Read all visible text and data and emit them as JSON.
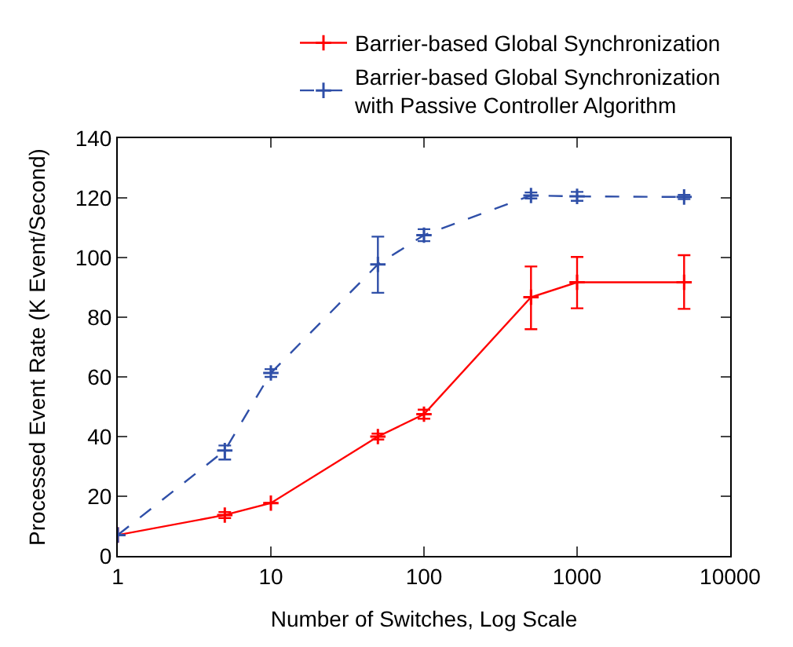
{
  "chart_data": {
    "type": "line",
    "xlabel": "Number of Switches, Log Scale",
    "ylabel": "Processed Event Rate (K Event/Second)",
    "x": [
      1,
      5,
      10,
      50,
      100,
      500,
      1000,
      5000
    ],
    "series": [
      {
        "name": "Barrier-based Global Synchronization",
        "color": "#ff0000",
        "line_style": "solid",
        "marker": "cross",
        "values": [
          7,
          13.7,
          17.7,
          40,
          47.5,
          86.7,
          91.7,
          91.7
        ],
        "errors": [
          null,
          1,
          null,
          1,
          1.5,
          [
            76,
            97
          ],
          [
            83,
            100.2
          ],
          [
            82.8,
            100.8
          ]
        ]
      },
      {
        "name": "Barrier-based Global Synchronization\nwith Passive Controller Algorithm",
        "color": "#2f4fa8",
        "line_style": "dashed",
        "marker": "cross",
        "values": [
          7,
          35.3,
          61.3,
          97.7,
          107.5,
          120.8,
          120.5,
          120.3
        ],
        "errors": [
          null,
          [
            32.3,
            37
          ],
          1.3,
          [
            88.2,
            107
          ],
          2,
          1,
          1.5,
          0.7
        ]
      }
    ],
    "log": "x",
    "xlim": [
      1,
      10000
    ],
    "xticks": [
      1,
      10,
      100,
      1000,
      10000
    ],
    "ylim": [
      0,
      140
    ],
    "yticks": [
      0,
      20,
      40,
      60,
      80,
      100,
      120,
      140
    ],
    "legend": "top right"
  }
}
